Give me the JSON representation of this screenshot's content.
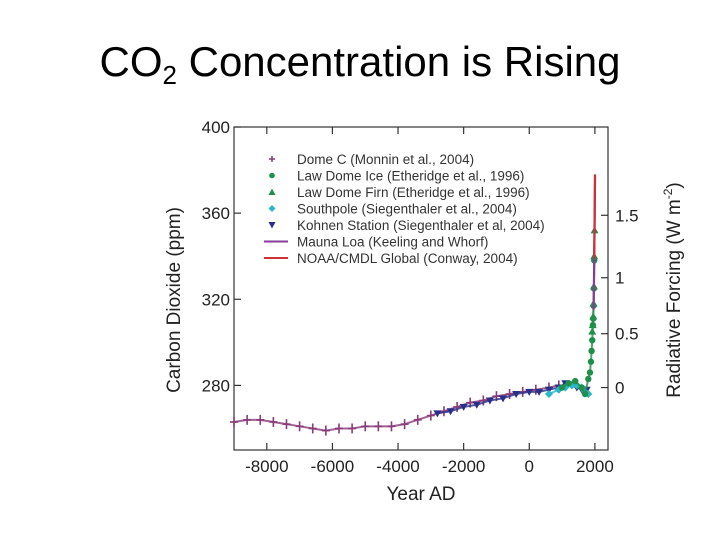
{
  "slide": {
    "title_main": "CO",
    "title_sub": "2",
    "title_rest": " Concentration is Rising"
  },
  "chart_data": {
    "type": "scatter",
    "xlabel": "Year AD",
    "ylabel": "Carbon Dioxide (ppm)",
    "y2label": "Radiative Forcing (W m",
    "y2label_sup": "-2",
    "y2label_end": ")",
    "xlim": [
      -9000,
      2400
    ],
    "ylim": [
      250,
      400
    ],
    "x_ticks": [
      -8000,
      -6000,
      -4000,
      -2000,
      0,
      2000
    ],
    "y_ticks": [
      280,
      320,
      360,
      400
    ],
    "y2_ticks": [
      {
        "label": "0",
        "ppm": 279
      },
      {
        "label": "0.5",
        "ppm": 304
      },
      {
        "label": "1",
        "ppm": 330
      },
      {
        "label": "1.5",
        "ppm": 359
      }
    ],
    "legend": [
      {
        "name": "Dome C (Monnin et al., 2004)",
        "color": "#8a3a78",
        "marker": "plus"
      },
      {
        "name": "Law Dome Ice (Etheridge et al., 1996)",
        "color": "#1f8f4a",
        "marker": "circle"
      },
      {
        "name": "Law Dome Firn (Etheridge et al., 1996)",
        "color": "#1f8f4a",
        "marker": "triangle"
      },
      {
        "name": "Southpole (Siegenthaler et al., 2004)",
        "color": "#2ab7c6",
        "marker": "diamond"
      },
      {
        "name": "Kohnen Station (Siegenthaler et al, 2004)",
        "color": "#2b2f8a",
        "marker": "tri-down"
      },
      {
        "name": "Mauna Loa (Keeling and Whorf)",
        "color": "#8a3a9a",
        "marker": "line"
      },
      {
        "name": "NOAA/CMDL Global  (Conway, 2004)",
        "color": "#d03030",
        "marker": "line"
      }
    ],
    "series": [
      {
        "name": "Dome C",
        "color": "#8a3a78",
        "x": [
          -9000,
          -8600,
          -8200,
          -7800,
          -7400,
          -7000,
          -6600,
          -6200,
          -5800,
          -5400,
          -5000,
          -4600,
          -4200,
          -3800,
          -3400,
          -3000,
          -2600,
          -2200,
          -1800,
          -1400,
          -1000,
          -600,
          -200,
          200,
          600,
          900
        ],
        "y": [
          263,
          264,
          264,
          263,
          262,
          261,
          260,
          259,
          260,
          260,
          261,
          261,
          261,
          262,
          264,
          266,
          268,
          270,
          272,
          273,
          275,
          276,
          277,
          278,
          279,
          280
        ]
      },
      {
        "name": "Kohnen Station",
        "color": "#2b2f8a",
        "x": [
          -2800,
          -2400,
          -2000,
          -1600,
          -1200,
          -800,
          -400,
          0,
          300,
          600,
          900,
          1100,
          1300,
          1450,
          1600,
          1750
        ],
        "y": [
          267,
          268,
          270,
          271,
          273,
          274,
          276,
          277,
          277,
          278,
          279,
          281,
          280,
          279,
          278,
          278
        ]
      },
      {
        "name": "Southpole",
        "color": "#2ab7c6",
        "x": [
          600,
          900,
          1100,
          1300,
          1450,
          1600,
          1700,
          1800
        ],
        "y": [
          276,
          278,
          279,
          280,
          280,
          279,
          277,
          276
        ]
      },
      {
        "name": "Law Dome Ice",
        "color": "#1f8f4a",
        "x": [
          1000,
          1200,
          1400,
          1600,
          1700,
          1800,
          1850,
          1880,
          1900,
          1920,
          1940,
          1950,
          1960,
          1970,
          1980
        ],
        "y": [
          279,
          281,
          282,
          279,
          276,
          283,
          286,
          291,
          296,
          301,
          308,
          311,
          317,
          325,
          338
        ]
      },
      {
        "name": "Law Dome Firn",
        "color": "#1f8f4a",
        "x": [
          1920,
          1935,
          1950,
          1960,
          1970,
          1980,
          1990
        ],
        "y": [
          305,
          308,
          312,
          318,
          326,
          340,
          352
        ]
      },
      {
        "name": "Mauna Loa",
        "color": "#8a3a9a",
        "x": [
          1958,
          1965,
          1970,
          1975,
          1980,
          1985,
          1990,
          1995,
          2000,
          2004
        ],
        "y": [
          315,
          320,
          325,
          331,
          338,
          346,
          354,
          361,
          369,
          377
        ]
      },
      {
        "name": "NOAA/CMDL Global",
        "color": "#d03030",
        "x": [
          1980,
          1985,
          1990,
          1995,
          2000,
          2004
        ],
        "y": [
          339,
          346,
          354,
          361,
          369,
          378
        ]
      }
    ]
  }
}
